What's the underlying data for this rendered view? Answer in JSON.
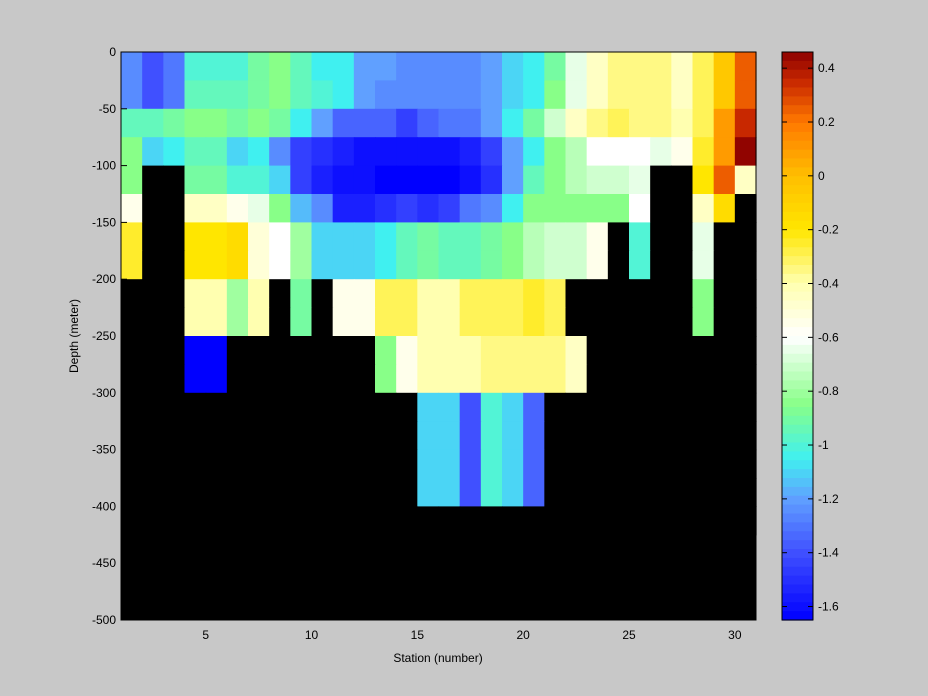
{
  "chart_data": {
    "type": "heatmap",
    "title": "",
    "xlabel": "Station (number)",
    "ylabel": "Depth (meter)",
    "xlim": [
      1,
      31
    ],
    "ylim": [
      -500,
      0
    ],
    "x_ticks": [
      5,
      10,
      15,
      20,
      25,
      30
    ],
    "y_ticks": [
      0,
      -50,
      -100,
      -150,
      -200,
      -250,
      -300,
      -350,
      -400,
      -450,
      -500
    ],
    "stations": [
      1,
      2,
      3,
      4,
      5,
      6,
      7,
      8,
      9,
      10,
      11,
      12,
      13,
      14,
      15,
      16,
      17,
      18,
      19,
      20,
      21,
      22,
      23,
      24,
      25,
      26,
      27,
      28,
      29,
      30
    ],
    "depth_bins_top": [
      0,
      -25,
      -50,
      -75,
      -100,
      -125,
      -150,
      -175,
      -200,
      -225,
      -250,
      -275,
      -300,
      -325,
      -350,
      -375,
      -400
    ],
    "no_data_color": "#000000",
    "colorbar": {
      "range": [
        -1.65,
        0.46
      ],
      "ticks": [
        0.4,
        0.2,
        0,
        -0.2,
        -0.4,
        -0.6,
        -0.8,
        -1,
        -1.2,
        -1.4,
        -1.6
      ],
      "tick_labels": [
        "0.4",
        "0.2",
        "0",
        "-0.2",
        "-0.4",
        "-0.6",
        "-0.8",
        "-1",
        "-1.2",
        "-1.4",
        "-1.6"
      ],
      "colormap": "blue-cyan-green-white-yellow-orange-darkred"
    },
    "values": [
      [
        -1.25,
        -1.4,
        -1.3,
        -1.0,
        -1.0,
        -1.0,
        -0.9,
        -0.85,
        -0.95,
        -1.05,
        -1.05,
        -1.2,
        -1.2,
        -1.25,
        -1.25,
        -1.25,
        -1.25,
        -1.2,
        -1.1,
        -1.05,
        -0.9,
        -0.65,
        -0.45,
        -0.35,
        -0.35,
        -0.35,
        -0.45,
        -0.3,
        -0.05,
        0.25
      ],
      [
        -1.25,
        -1.4,
        -1.3,
        -0.95,
        -0.95,
        -0.95,
        -0.9,
        -0.85,
        -0.95,
        -1.0,
        -1.05,
        -1.2,
        -1.25,
        -1.25,
        -1.25,
        -1.25,
        -1.25,
        -1.2,
        -1.1,
        -1.05,
        -0.85,
        -0.65,
        -0.45,
        -0.35,
        -0.35,
        -0.35,
        -0.45,
        -0.3,
        -0.05,
        0.25
      ],
      [
        -0.95,
        -0.95,
        -0.9,
        -0.85,
        -0.85,
        -0.9,
        -0.85,
        -0.9,
        -1.05,
        -1.2,
        -1.35,
        -1.35,
        -1.35,
        -1.45,
        -1.35,
        -1.3,
        -1.3,
        -1.2,
        -1.05,
        -0.9,
        -0.7,
        -0.45,
        -0.35,
        -0.3,
        -0.35,
        -0.35,
        -0.4,
        -0.3,
        0.1,
        0.35
      ],
      [
        -0.85,
        -1.1,
        -1.05,
        -0.95,
        -0.95,
        -1.1,
        -1.05,
        -1.25,
        -1.45,
        -1.5,
        -1.55,
        -1.6,
        -1.6,
        -1.6,
        -1.6,
        -1.6,
        -1.55,
        -1.45,
        -1.2,
        -1.05,
        -0.85,
        -0.75,
        -0.6,
        -0.6,
        -0.6,
        -0.65,
        -0.55,
        -0.25,
        0.1,
        0.45
      ],
      [
        -0.85,
        null,
        null,
        -0.9,
        -0.9,
        -1.0,
        -1.0,
        -1.1,
        -1.45,
        -1.55,
        -1.6,
        -1.6,
        -1.65,
        -1.65,
        -1.65,
        -1.65,
        -1.6,
        -1.5,
        -1.2,
        -0.95,
        -0.85,
        -0.75,
        -0.7,
        -0.7,
        -0.65,
        null,
        null,
        -0.2,
        0.25,
        -0.45
      ],
      [
        -0.55,
        null,
        null,
        -0.45,
        -0.45,
        -0.55,
        -0.65,
        -0.85,
        -1.15,
        -1.25,
        -1.55,
        -1.55,
        -1.5,
        -1.45,
        -1.5,
        -1.45,
        -1.3,
        -1.25,
        -1.05,
        -0.85,
        -0.85,
        -0.85,
        -0.85,
        -0.85,
        -0.6,
        null,
        null,
        -0.45,
        -0.15,
        null
      ],
      [
        -0.25,
        null,
        null,
        -0.2,
        -0.2,
        -0.15,
        -0.5,
        -0.6,
        -0.8,
        -1.1,
        -1.1,
        -1.1,
        -1.05,
        -0.95,
        -0.9,
        -0.95,
        -0.95,
        -0.9,
        -0.85,
        -0.75,
        -0.7,
        -0.7,
        -0.55,
        null,
        -1.0,
        null,
        null,
        -0.65,
        null,
        null
      ],
      [
        -0.25,
        null,
        null,
        -0.2,
        -0.2,
        -0.15,
        -0.5,
        -0.6,
        -0.8,
        -1.1,
        -1.1,
        -1.1,
        -1.05,
        -0.95,
        -0.9,
        -0.95,
        -0.95,
        -0.9,
        -0.85,
        -0.75,
        -0.7,
        -0.7,
        -0.55,
        null,
        -1.0,
        null,
        null,
        -0.65,
        null,
        null
      ],
      [
        null,
        null,
        null,
        -0.4,
        -0.4,
        -0.8,
        -0.4,
        null,
        -0.9,
        null,
        -0.55,
        -0.55,
        -0.3,
        -0.3,
        -0.4,
        -0.4,
        -0.3,
        -0.3,
        -0.3,
        -0.25,
        -0.3,
        null,
        null,
        null,
        null,
        null,
        null,
        -0.85,
        null,
        null
      ],
      [
        null,
        null,
        null,
        -0.4,
        -0.4,
        -0.8,
        -0.4,
        null,
        -0.9,
        null,
        -0.55,
        -0.55,
        -0.3,
        -0.3,
        -0.4,
        -0.4,
        -0.3,
        -0.3,
        -0.3,
        -0.25,
        -0.3,
        null,
        null,
        null,
        null,
        null,
        null,
        -0.85,
        null,
        null
      ],
      [
        null,
        null,
        null,
        -1.65,
        -1.65,
        null,
        null,
        null,
        null,
        null,
        null,
        null,
        -0.85,
        -0.55,
        -0.4,
        -0.4,
        -0.4,
        -0.35,
        -0.35,
        -0.35,
        -0.35,
        -0.45,
        null,
        null,
        null,
        null,
        null,
        null,
        null,
        null
      ],
      [
        null,
        null,
        null,
        -1.65,
        -1.65,
        null,
        null,
        null,
        null,
        null,
        null,
        null,
        -0.85,
        -0.55,
        -0.4,
        -0.4,
        -0.4,
        -0.35,
        -0.35,
        -0.35,
        -0.35,
        -0.45,
        null,
        null,
        null,
        null,
        null,
        null,
        null,
        null
      ],
      [
        null,
        null,
        null,
        null,
        null,
        null,
        null,
        null,
        null,
        null,
        null,
        null,
        null,
        null,
        -1.1,
        -1.1,
        -1.4,
        -1.0,
        -1.1,
        -1.35,
        null,
        null,
        null,
        null,
        null,
        null,
        null,
        null,
        null,
        null
      ],
      [
        null,
        null,
        null,
        null,
        null,
        null,
        null,
        null,
        null,
        null,
        null,
        null,
        null,
        null,
        -1.1,
        -1.1,
        -1.4,
        -1.0,
        -1.1,
        -1.35,
        null,
        null,
        null,
        null,
        null,
        null,
        null,
        null,
        null,
        null
      ],
      [
        null,
        null,
        null,
        null,
        null,
        null,
        null,
        null,
        null,
        null,
        null,
        null,
        null,
        null,
        -1.1,
        -1.1,
        -1.4,
        -1.0,
        -1.1,
        -1.35,
        null,
        null,
        null,
        null,
        null,
        null,
        null,
        null,
        null,
        null
      ],
      [
        null,
        null,
        null,
        null,
        null,
        null,
        null,
        null,
        null,
        null,
        null,
        null,
        null,
        null,
        -1.1,
        -1.1,
        -1.4,
        -1.0,
        -1.1,
        -1.35,
        null,
        null,
        null,
        null,
        null,
        null,
        null,
        null,
        null,
        null
      ],
      [
        null,
        null,
        null,
        null,
        null,
        null,
        null,
        null,
        null,
        null,
        null,
        null,
        null,
        null,
        null,
        null,
        null,
        null,
        null,
        null,
        null,
        null,
        null,
        null,
        null,
        null,
        null,
        null,
        null,
        null
      ]
    ]
  }
}
